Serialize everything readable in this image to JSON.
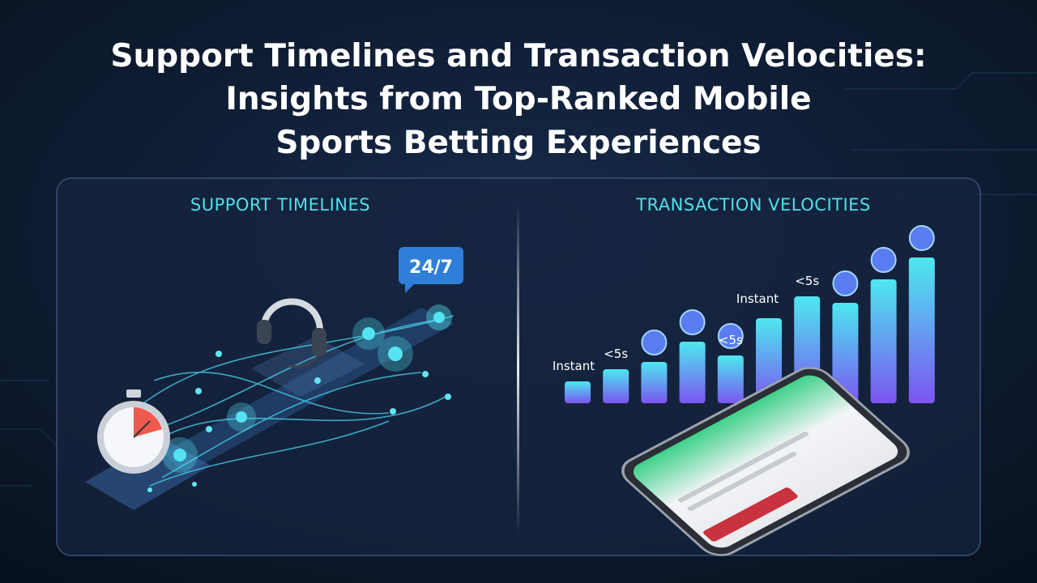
{
  "title": {
    "lines": [
      "Support Timelines and Transaction Velocities:",
      "Insights from Top-Ranked Mobile",
      "Sports Betting Experiences"
    ]
  },
  "panels": [
    {
      "heading": "SUPPORT TIMELINES",
      "badge": "24/7"
    },
    {
      "heading": "TRANSACTION VELOCITIES",
      "bar_labels": [
        "Instant",
        "<5s",
        "<5s",
        "Instant",
        "<5s"
      ]
    }
  ]
}
